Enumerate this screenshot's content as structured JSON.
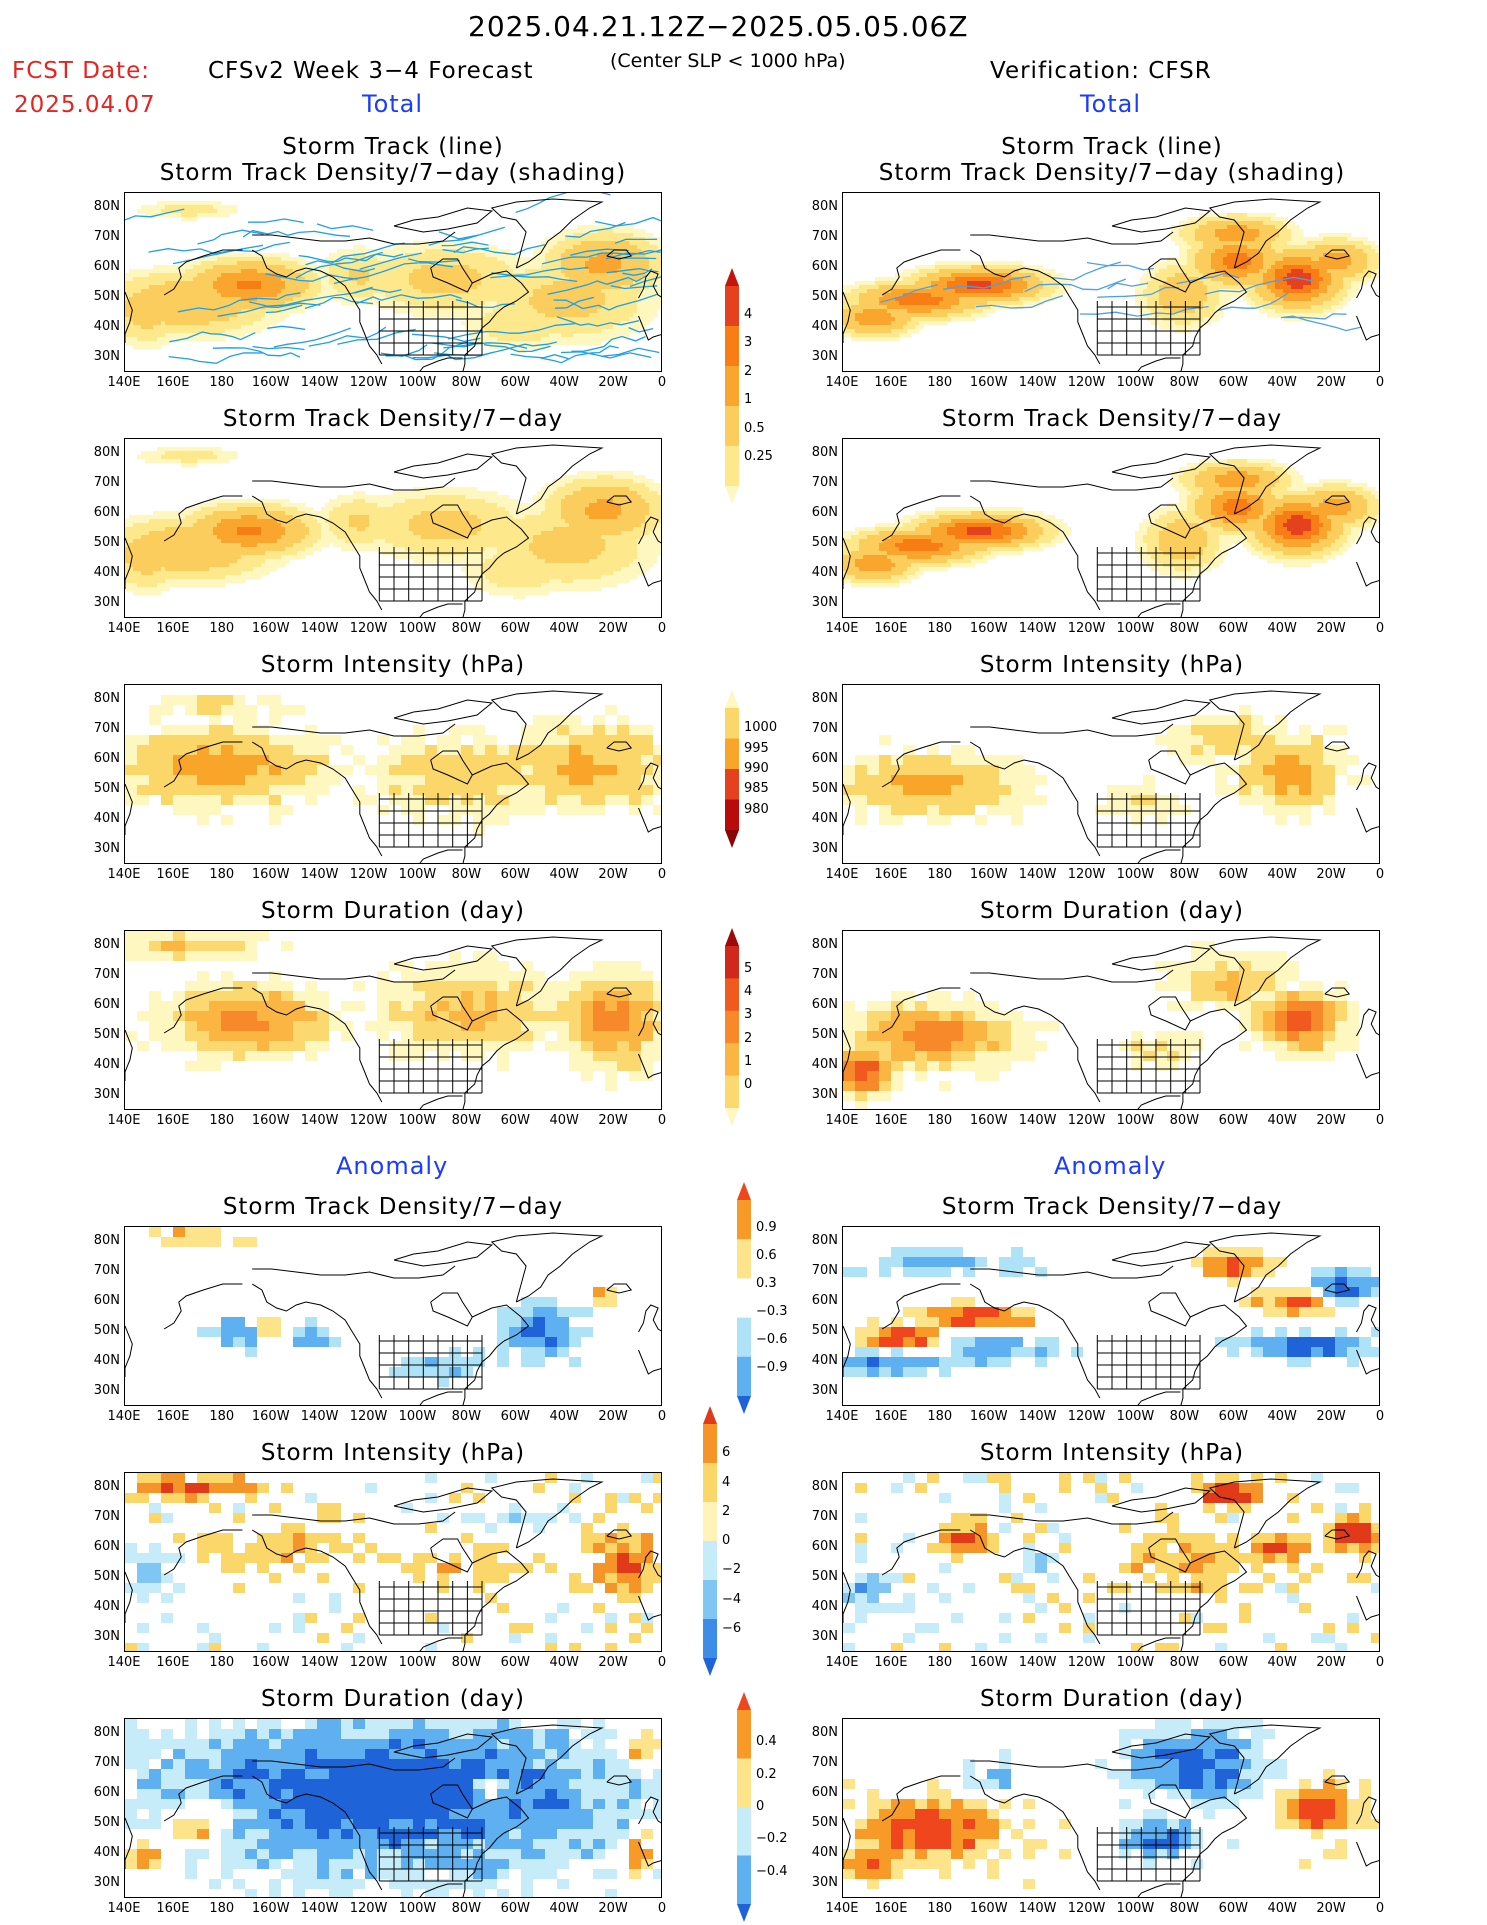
{
  "header": {
    "date_range": "2025.04.21.12Z−2025.05.05.06Z",
    "fcst_label": "FCST Date:",
    "fcst_date": "2025.04.07",
    "model_title": "CFSv2 Week 3−4 Forecast",
    "subtitle": "(Center SLP < 1000 hPa)",
    "verification": "Verification: CFSR"
  },
  "section_labels": {
    "total": "Total",
    "anomaly": "Anomaly"
  },
  "panel_titles": {
    "track_line": "Storm Track (line)",
    "track_density_shading": "Storm Track Density/7−day (shading)",
    "track_density": "Storm Track Density/7−day",
    "intensity": "Storm Intensity (hPa)",
    "duration": "Storm Duration (day)"
  },
  "axes": {
    "lat_ticks": [
      "80N",
      "70N",
      "60N",
      "50N",
      "40N",
      "30N"
    ],
    "lon_ticks": [
      "140E",
      "160E",
      "180",
      "160W",
      "140W",
      "120W",
      "100W",
      "80W",
      "60W",
      "40W",
      "20W",
      "0"
    ]
  },
  "colorbars": {
    "density_total": {
      "labels": [
        "4",
        "3",
        "2",
        "1",
        "0.5",
        "0.25"
      ],
      "colors": [
        "#c3140e",
        "#e6411e",
        "#f87d14",
        "#f9a52e",
        "#fbcd5c",
        "#fde98b",
        "#fff7c0"
      ]
    },
    "intensity_total": {
      "labels": [
        "1000",
        "995",
        "990",
        "985",
        "980"
      ],
      "colors": [
        "#fff7c0",
        "#fbd76a",
        "#f8a52a",
        "#e6411e",
        "#b80c0c",
        "#8a0606"
      ]
    },
    "duration_total": {
      "labels": [
        "5",
        "4",
        "3",
        "2",
        "1",
        "0"
      ],
      "colors": [
        "#a10808",
        "#d0281a",
        "#f05a1e",
        "#f8892a",
        "#fab542",
        "#fcd970",
        "#fff7c0"
      ]
    },
    "density_anom": {
      "labels": [
        "0.9",
        "0.6",
        "0.3",
        "−0.3",
        "−0.6",
        "−0.9"
      ],
      "colors": [
        "#f0461e",
        "#f89a28",
        "#fde48a",
        "#ffffff",
        "#aee3f7",
        "#5fb0f0",
        "#1e64d8"
      ]
    },
    "intensity_anom": {
      "labels": [
        "6",
        "4",
        "2",
        "0",
        "−2",
        "−4",
        "−6"
      ],
      "colors": [
        "#e03a1a",
        "#f59428",
        "#fbd76a",
        "#fff3b8",
        "#c6ecfa",
        "#80c6f4",
        "#3c8ce8",
        "#1e64d8"
      ]
    },
    "duration_anom": {
      "labels": [
        "0.4",
        "0.2",
        "0",
        "−0.2",
        "−0.4"
      ],
      "colors": [
        "#f0461e",
        "#f89a28",
        "#fde48a",
        "#c6ecfa",
        "#5fb0f0",
        "#1e64d8"
      ]
    }
  },
  "chart_data": [
    {
      "type": "heatmap",
      "title": "Storm Track (line) / Storm Track Density/7−day (shading)",
      "panel": "CFSv2 Week 3−4 Forecast — Total",
      "xlabel": "",
      "ylabel": "",
      "xlim": [
        "140E",
        "0"
      ],
      "ylim": [
        "25N",
        "85N"
      ],
      "grid": false,
      "max_density_centers": [
        {
          "lon": "165W",
          "lat": "55N",
          "value": 3
        },
        {
          "lon": "25W",
          "lat": "62N",
          "value": 2
        },
        {
          "lon": "175E",
          "lat": "50N",
          "value": 2
        }
      ]
    },
    {
      "type": "heatmap",
      "title": "Storm Track (line) / Storm Track Density/7−day (shading)",
      "panel": "Verification: CFSR — Total",
      "xlim": [
        "140E",
        "0"
      ],
      "ylim": [
        "25N",
        "85N"
      ],
      "max_density_centers": [
        {
          "lon": "160W",
          "lat": "55N",
          "value": 4
        },
        {
          "lon": "35W",
          "lat": "58N",
          "value": 4
        },
        {
          "lon": "60W",
          "lat": "67N",
          "value": 3
        }
      ]
    },
    {
      "type": "heatmap",
      "title": "Storm Track Density/7−day",
      "panel": "CFSv2 Week 3−4 Forecast — Total",
      "xlim": [
        "140E",
        "0"
      ],
      "ylim": [
        "25N",
        "85N"
      ],
      "max_density_centers": [
        {
          "lon": "165W",
          "lat": "55N",
          "value": 3
        },
        {
          "lon": "25W",
          "lat": "62N",
          "value": 2
        }
      ]
    },
    {
      "type": "heatmap",
      "title": "Storm Track Density/7−day",
      "panel": "Verification: CFSR — Total",
      "xlim": [
        "140E",
        "0"
      ],
      "ylim": [
        "25N",
        "85N"
      ],
      "max_density_centers": [
        {
          "lon": "170W",
          "lat": "52N",
          "value": 4
        },
        {
          "lon": "35W",
          "lat": "56N",
          "value": 4
        }
      ]
    },
    {
      "type": "heatmap",
      "title": "Storm Intensity (hPa)",
      "panel": "CFSv2 Week 3−4 Forecast — Total",
      "xlim": [
        "140E",
        "0"
      ],
      "ylim": [
        "25N",
        "85N"
      ],
      "value_range_hPa": [
        985,
        1000
      ]
    },
    {
      "type": "heatmap",
      "title": "Storm Intensity (hPa)",
      "panel": "Verification: CFSR — Total",
      "xlim": [
        "140E",
        "0"
      ],
      "ylim": [
        "25N",
        "85N"
      ],
      "value_range_hPa": [
        985,
        1000
      ]
    },
    {
      "type": "heatmap",
      "title": "Storm Duration (day)",
      "panel": "CFSv2 Week 3−4 Forecast — Total",
      "xlim": [
        "140E",
        "0"
      ],
      "ylim": [
        "25N",
        "85N"
      ],
      "value_range_day": [
        1,
        5
      ]
    },
    {
      "type": "heatmap",
      "title": "Storm Duration (day)",
      "panel": "Verification: CFSR — Total",
      "xlim": [
        "140E",
        "0"
      ],
      "ylim": [
        "25N",
        "85N"
      ],
      "value_range_day": [
        1,
        5
      ]
    },
    {
      "type": "heatmap",
      "title": "Storm Track Density/7−day",
      "panel": "CFSv2 Week 3−4 Forecast — Anomaly",
      "xlim": [
        "140E",
        "0"
      ],
      "ylim": [
        "25N",
        "85N"
      ],
      "value_range": [
        -0.9,
        0.6
      ]
    },
    {
      "type": "heatmap",
      "title": "Storm Track Density/7−day",
      "panel": "Verification: CFSR — Anomaly",
      "xlim": [
        "140E",
        "0"
      ],
      "ylim": [
        "25N",
        "85N"
      ],
      "value_range": [
        -0.9,
        0.9
      ]
    },
    {
      "type": "heatmap",
      "title": "Storm Intensity (hPa)",
      "panel": "CFSv2 Week 3−4 Forecast — Anomaly",
      "xlim": [
        "140E",
        "0"
      ],
      "ylim": [
        "25N",
        "85N"
      ],
      "value_range_hPa": [
        -4,
        4
      ]
    },
    {
      "type": "heatmap",
      "title": "Storm Intensity (hPa)",
      "panel": "Verification: CFSR — Anomaly",
      "xlim": [
        "140E",
        "0"
      ],
      "ylim": [
        "25N",
        "85N"
      ],
      "value_range_hPa": [
        -4,
        6
      ]
    },
    {
      "type": "heatmap",
      "title": "Storm Duration (day)",
      "panel": "CFSv2 Week 3−4 Forecast — Anomaly",
      "xlim": [
        "140E",
        "0"
      ],
      "ylim": [
        "25N",
        "85N"
      ],
      "value_range_day": [
        -0.4,
        0.4
      ]
    },
    {
      "type": "heatmap",
      "title": "Storm Duration (day)",
      "panel": "Verification: CFSR — Anomaly",
      "xlim": [
        "140E",
        "0"
      ],
      "ylim": [
        "25N",
        "85N"
      ],
      "value_range_day": [
        -0.4,
        0.4
      ]
    }
  ]
}
